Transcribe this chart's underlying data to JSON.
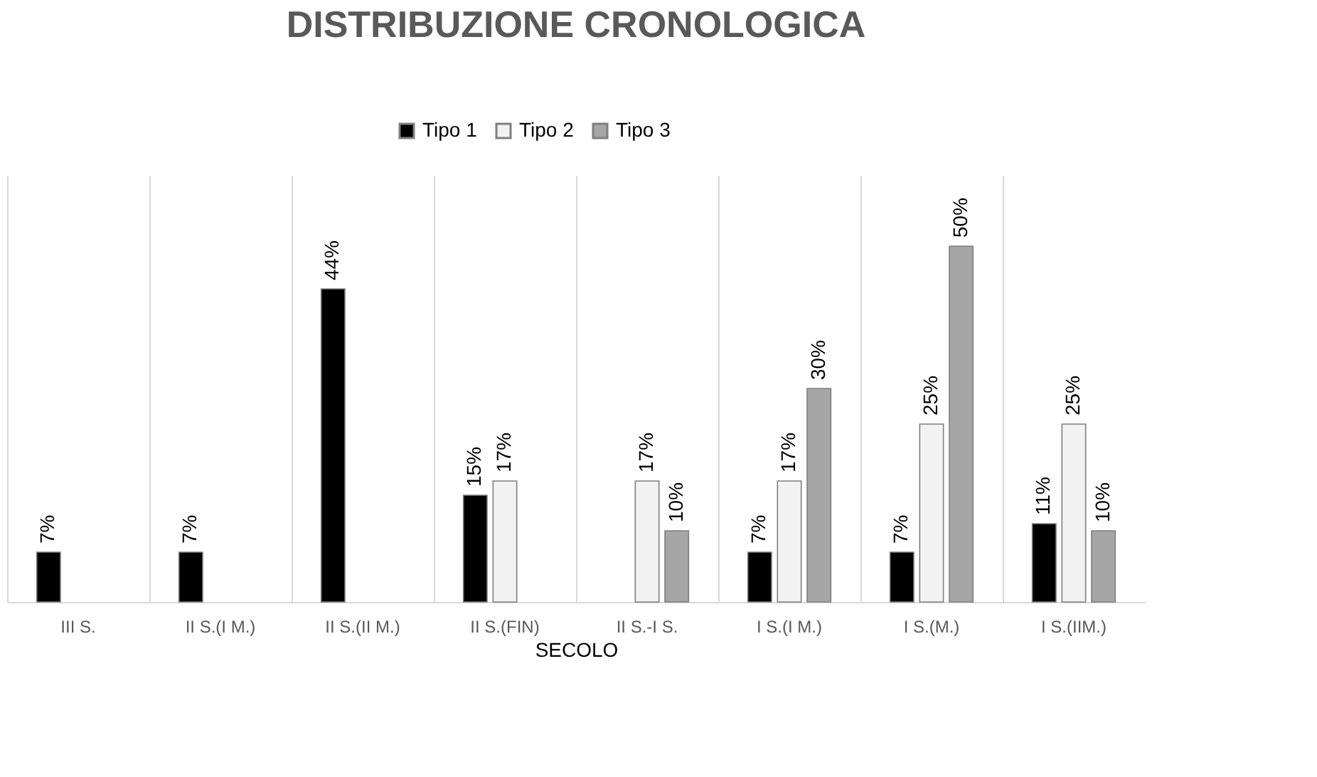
{
  "chart_data": {
    "type": "bar",
    "title": "DISTRIBUZIONE CRONOLOGICA",
    "xlabel": "SECOLO",
    "categories": [
      "III S.",
      "II S.(I M.)",
      "II S.(II M.)",
      "II S.(FIN)",
      "II S.-I S.",
      "I S.(I M.)",
      "I S.(M.)",
      "I S.(IIM.)"
    ],
    "series": [
      {
        "name": "Tipo 1",
        "color": "#000000",
        "values": [
          7,
          7,
          44,
          15,
          null,
          7,
          7,
          11
        ],
        "value_labels": [
          "7%",
          "7%",
          "44%",
          "15%",
          null,
          "7%",
          "7%",
          "11%"
        ]
      },
      {
        "name": "Tipo 2",
        "color": "#f2f2f2",
        "values": [
          null,
          null,
          null,
          17,
          17,
          17,
          25,
          25
        ],
        "value_labels": [
          null,
          null,
          null,
          "17%",
          "17%",
          "17%",
          "25%",
          "25%"
        ]
      },
      {
        "name": "Tipo 3",
        "color": "#a6a6a6",
        "values": [
          null,
          null,
          null,
          null,
          10,
          30,
          50,
          10
        ],
        "value_labels": [
          null,
          null,
          null,
          null,
          "10%",
          "30%",
          "50%",
          "10%"
        ]
      }
    ],
    "grid": "x",
    "legend": "top"
  }
}
